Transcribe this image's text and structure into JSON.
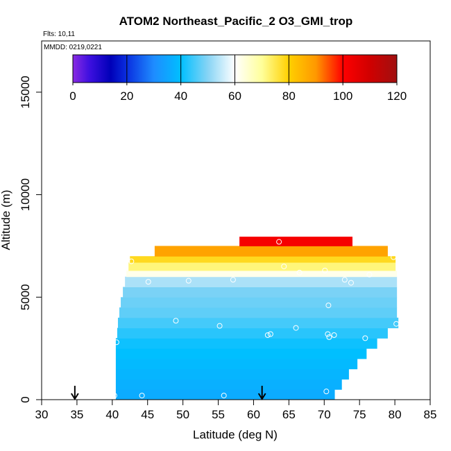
{
  "chart_data": {
    "type": "heatmap",
    "title": "ATOM2 Northeast_Pacific_2 O3_GMI_trop",
    "flights_note": "Flts: 10,11",
    "date_note": "MMDD: 0219,0221",
    "xlabel": "Latitude (deg N)",
    "ylabel": "Altitude (m)",
    "xlim": [
      30,
      85
    ],
    "ylim": [
      0,
      17500
    ],
    "x_ticks": [
      "30",
      "35",
      "40",
      "45",
      "50",
      "55",
      "60",
      "65",
      "70",
      "75",
      "80",
      "85"
    ],
    "y_ticks": [
      "0",
      "5000",
      "10000",
      "15000"
    ],
    "colorbar": {
      "range": [
        0,
        120
      ],
      "ticks": [
        "0",
        "20",
        "40",
        "60",
        "80",
        "100",
        "120"
      ],
      "stops": [
        {
          "v": 0,
          "c": "#8a2be2"
        },
        {
          "v": 6,
          "c": "#3f10e0"
        },
        {
          "v": 14,
          "c": "#0000b8"
        },
        {
          "v": 20,
          "c": "#0a2fe0"
        },
        {
          "v": 30,
          "c": "#1e8cff"
        },
        {
          "v": 40,
          "c": "#00bfff"
        },
        {
          "v": 50,
          "c": "#87d4f5"
        },
        {
          "v": 60,
          "c": "#ffffff"
        },
        {
          "v": 70,
          "c": "#ffff9a"
        },
        {
          "v": 80,
          "c": "#ffd000"
        },
        {
          "v": 90,
          "c": "#ff9800"
        },
        {
          "v": 100,
          "c": "#ff0000"
        },
        {
          "v": 110,
          "c": "#d00000"
        },
        {
          "v": 120,
          "c": "#a01010"
        }
      ]
    },
    "arrows_x": [
      34.7,
      61.2
    ],
    "layers": [
      {
        "alt": [
          0,
          500
        ],
        "lat": [
          40.5,
          71.5
        ],
        "o3": 36
      },
      {
        "alt": [
          500,
          1000
        ],
        "lat": [
          40.5,
          72.5
        ],
        "o3": 37
      },
      {
        "alt": [
          1000,
          1500
        ],
        "lat": [
          40.5,
          73.5
        ],
        "o3": 38
      },
      {
        "alt": [
          1500,
          2000
        ],
        "lat": [
          40.5,
          74.7
        ],
        "o3": 39
      },
      {
        "alt": [
          2000,
          2500
        ],
        "lat": [
          40.5,
          76
        ],
        "o3": 40
      },
      {
        "alt": [
          2500,
          3000
        ],
        "lat": [
          40.5,
          77.5
        ],
        "o3": 41
      },
      {
        "alt": [
          3000,
          3500
        ],
        "lat": [
          40.7,
          79
        ],
        "o3": 43
      },
      {
        "alt": [
          3500,
          4000
        ],
        "lat": [
          40.8,
          80.5
        ],
        "o3": 45
      },
      {
        "alt": [
          4000,
          4500
        ],
        "lat": [
          41,
          80.3
        ],
        "o3": 47
      },
      {
        "alt": [
          4500,
          5000
        ],
        "lat": [
          41.2,
          80.3
        ],
        "o3": 48
      },
      {
        "alt": [
          5000,
          5500
        ],
        "lat": [
          41.5,
          80.3
        ],
        "o3": 49
      },
      {
        "alt": [
          5500,
          6000
        ],
        "lat": [
          41.8,
          80.3
        ],
        "o3": 53
      },
      {
        "alt": [
          6000,
          6300
        ],
        "lat": [
          42,
          80.3
        ],
        "o3": 62
      },
      {
        "alt": [
          6300,
          6700
        ],
        "lat": [
          42.3,
          80.1
        ],
        "o3": 72
      },
      {
        "alt": [
          6700,
          7000
        ],
        "lat": [
          42.5,
          80.1
        ],
        "o3": 78
      },
      {
        "alt": [
          7000,
          7500
        ],
        "lat": [
          46,
          79
        ],
        "o3": 88
      },
      {
        "alt": [
          7500,
          7950
        ],
        "lat": [
          58,
          74
        ],
        "o3": 102
      }
    ],
    "points": [
      {
        "x": 40.3,
        "y": 200
      },
      {
        "x": 44.2,
        "y": 200
      },
      {
        "x": 55.8,
        "y": 200
      },
      {
        "x": 70.3,
        "y": 400
      },
      {
        "x": 40.6,
        "y": 2800
      },
      {
        "x": 49,
        "y": 3850
      },
      {
        "x": 55.2,
        "y": 3600
      },
      {
        "x": 62,
        "y": 3150
      },
      {
        "x": 62.4,
        "y": 3200
      },
      {
        "x": 66,
        "y": 3500
      },
      {
        "x": 70.5,
        "y": 3200
      },
      {
        "x": 71.4,
        "y": 3150
      },
      {
        "x": 70.7,
        "y": 3050
      },
      {
        "x": 75.8,
        "y": 3000
      },
      {
        "x": 80.2,
        "y": 3700
      },
      {
        "x": 70.6,
        "y": 4600
      },
      {
        "x": 45.1,
        "y": 5750
      },
      {
        "x": 50.8,
        "y": 5800
      },
      {
        "x": 57.1,
        "y": 5850
      },
      {
        "x": 64.3,
        "y": 6500
      },
      {
        "x": 66.5,
        "y": 6200
      },
      {
        "x": 70.1,
        "y": 6300
      },
      {
        "x": 72.9,
        "y": 5850
      },
      {
        "x": 73.8,
        "y": 5700
      },
      {
        "x": 76.4,
        "y": 6100
      },
      {
        "x": 42.7,
        "y": 6750
      },
      {
        "x": 63.6,
        "y": 7700
      },
      {
        "x": 79.8,
        "y": 6950
      }
    ]
  }
}
